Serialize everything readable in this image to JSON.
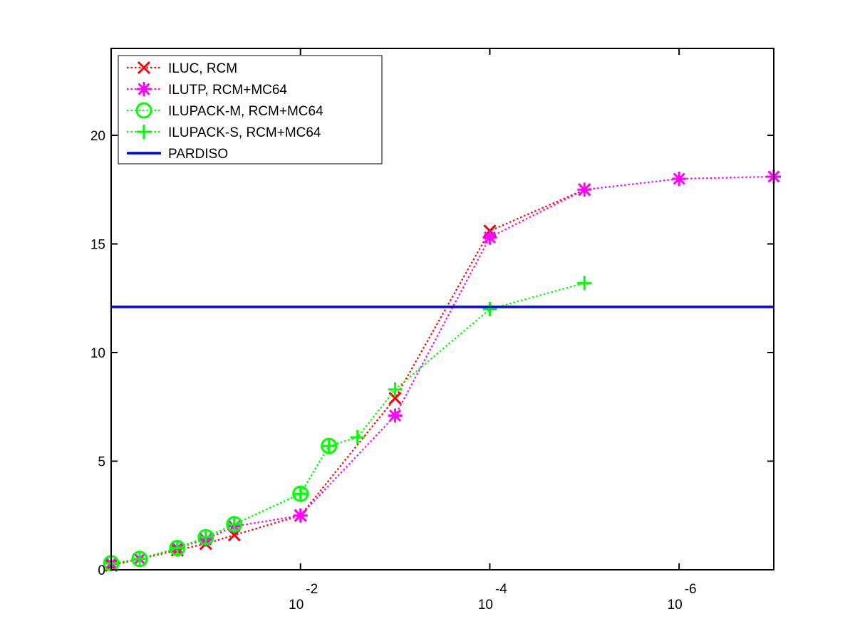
{
  "chart_data": {
    "type": "line",
    "title": "",
    "xlabel": "",
    "ylabel": "",
    "x_scale": "log",
    "x_reversed": true,
    "xlim": [
      1,
      1e-07
    ],
    "ylim": [
      0,
      24
    ],
    "grid": false,
    "legend_position": "top-left",
    "y_ticks": [
      0,
      5,
      10,
      15,
      20
    ],
    "x_ticks": [
      {
        "value": 0.01,
        "base": "10",
        "exponent": "-2"
      },
      {
        "value": 0.0001,
        "base": "10",
        "exponent": "-4"
      },
      {
        "value": 1e-06,
        "base": "10",
        "exponent": "-6"
      }
    ],
    "series": [
      {
        "name": "ILUC, RCM",
        "color": "#ff0000",
        "marker": "x",
        "line": "dotted",
        "points": [
          [
            1,
            0.2
          ],
          [
            0.5,
            0.5
          ],
          [
            0.2,
            0.9
          ],
          [
            0.1,
            1.2
          ],
          [
            0.05,
            1.6
          ],
          [
            0.01,
            2.5
          ],
          [
            0.001,
            7.9
          ],
          [
            0.0001,
            15.6
          ],
          [
            1e-05,
            17.5
          ]
        ]
      },
      {
        "name": "ILUTP, RCM+MC64",
        "color": "#ff00ff",
        "marker": "asterisk",
        "line": "dotted",
        "points": [
          [
            1,
            0.3
          ],
          [
            0.5,
            0.5
          ],
          [
            0.2,
            1.0
          ],
          [
            0.1,
            1.4
          ],
          [
            0.05,
            2.0
          ],
          [
            0.01,
            2.5
          ],
          [
            0.001,
            7.1
          ],
          [
            0.0001,
            15.3
          ],
          [
            1e-05,
            17.5
          ],
          [
            1e-06,
            18.0
          ],
          [
            1e-07,
            18.1
          ]
        ]
      },
      {
        "name": "ILUPACK-M, RCM+MC64",
        "color": "#00ff00",
        "marker": "circle",
        "line": "dotted",
        "points": [
          [
            1,
            0.3
          ],
          [
            0.5,
            0.5
          ],
          [
            0.2,
            1.0
          ],
          [
            0.1,
            1.5
          ],
          [
            0.05,
            2.1
          ],
          [
            0.01,
            3.5
          ],
          [
            0.005,
            5.7
          ]
        ]
      },
      {
        "name": "ILUPACK-S, RCM+MC64",
        "color": "#00ff00",
        "marker": "plus",
        "line": "dotted",
        "points": [
          [
            1,
            0.3
          ],
          [
            0.5,
            0.5
          ],
          [
            0.2,
            1.0
          ],
          [
            0.1,
            1.5
          ],
          [
            0.05,
            2.1
          ],
          [
            0.01,
            3.5
          ],
          [
            0.005,
            5.7
          ],
          [
            0.0025,
            6.1
          ],
          [
            0.001,
            8.3
          ],
          [
            0.0001,
            12.0
          ],
          [
            1e-05,
            13.2
          ]
        ]
      },
      {
        "name": "PARDISO",
        "color": "#0000ff",
        "marker": "none",
        "line": "solid",
        "points": [
          [
            1,
            12.1
          ],
          [
            1e-07,
            12.1
          ]
        ]
      }
    ]
  }
}
